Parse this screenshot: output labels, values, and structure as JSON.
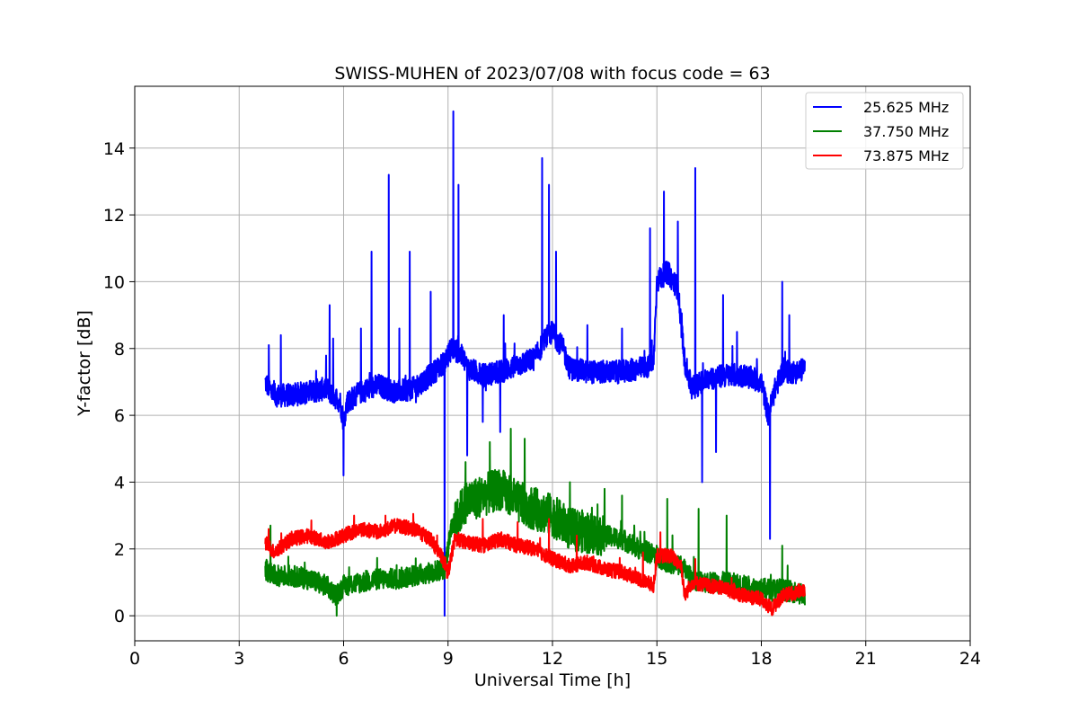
{
  "chart_data": {
    "type": "line",
    "title": "SWISS-MUHEN of 2023/07/08 with focus code = 63",
    "xlabel": "Universal Time [h]",
    "ylabel": "Y-factor [dB]",
    "xlim": [
      0,
      24
    ],
    "ylim": [
      -0.75,
      15.85
    ],
    "x_ticks": [
      0,
      3,
      6,
      9,
      12,
      15,
      18,
      21,
      24
    ],
    "x_tick_labels": [
      "0",
      "3",
      "6",
      "9",
      "12",
      "15",
      "18",
      "21",
      "24"
    ],
    "y_ticks": [
      0,
      2,
      4,
      6,
      8,
      10,
      12,
      14
    ],
    "y_tick_labels": [
      "0",
      "2",
      "4",
      "6",
      "8",
      "10",
      "12",
      "14"
    ],
    "grid": true,
    "legend_position": "top-right",
    "series": [
      {
        "name": "25.625 MHz",
        "color": "#0000ff",
        "x": [
          3.75,
          4.0,
          4.5,
          5.0,
          5.5,
          5.9,
          6.0,
          6.1,
          6.5,
          7.0,
          7.5,
          8.0,
          8.5,
          8.9,
          9.0,
          9.1,
          9.3,
          9.5,
          9.6,
          10.0,
          10.5,
          11.0,
          11.5,
          11.8,
          12.0,
          12.3,
          12.5,
          13.0,
          13.5,
          14.0,
          14.5,
          14.9,
          15.0,
          15.3,
          15.6,
          15.8,
          16.0,
          16.3,
          16.5,
          17.0,
          17.5,
          18.0,
          18.2,
          18.4,
          18.6,
          18.8,
          19.0,
          19.25
        ],
        "values": [
          7.0,
          6.6,
          6.6,
          6.7,
          6.8,
          6.4,
          5.8,
          6.4,
          6.7,
          6.9,
          6.7,
          6.8,
          7.2,
          7.6,
          7.8,
          8.0,
          7.9,
          7.6,
          7.4,
          7.2,
          7.3,
          7.5,
          7.7,
          8.3,
          8.5,
          8.0,
          7.4,
          7.3,
          7.3,
          7.3,
          7.4,
          7.5,
          10.0,
          10.3,
          9.8,
          7.6,
          6.8,
          7.0,
          7.1,
          7.2,
          7.2,
          7.0,
          6.0,
          6.8,
          7.3,
          7.3,
          7.3,
          7.4
        ],
        "spikes": [
          [
            3.85,
            8.1
          ],
          [
            4.2,
            8.4
          ],
          [
            5.6,
            9.3
          ],
          [
            5.7,
            8.3
          ],
          [
            6.0,
            4.2
          ],
          [
            6.5,
            8.6
          ],
          [
            6.8,
            10.9
          ],
          [
            7.3,
            13.2
          ],
          [
            7.6,
            8.6
          ],
          [
            7.9,
            10.9
          ],
          [
            8.5,
            9.7
          ],
          [
            8.9,
            0.0
          ],
          [
            9.15,
            15.1
          ],
          [
            9.3,
            12.9
          ],
          [
            9.55,
            4.8
          ],
          [
            10.0,
            5.8
          ],
          [
            10.5,
            5.5
          ],
          [
            10.6,
            9.0
          ],
          [
            11.7,
            13.7
          ],
          [
            11.9,
            12.9
          ],
          [
            12.1,
            10.9
          ],
          [
            13.0,
            8.7
          ],
          [
            14.0,
            8.6
          ],
          [
            14.8,
            11.6
          ],
          [
            15.2,
            12.7
          ],
          [
            15.6,
            11.8
          ],
          [
            16.1,
            13.4
          ],
          [
            16.3,
            4.0
          ],
          [
            16.7,
            4.9
          ],
          [
            16.9,
            9.6
          ],
          [
            17.3,
            8.5
          ],
          [
            18.25,
            2.3
          ],
          [
            18.6,
            10.0
          ],
          [
            18.8,
            9.0
          ]
        ]
      },
      {
        "name": "37.750 MHz",
        "color": "#008000",
        "x": [
          3.75,
          4.0,
          4.5,
          5.0,
          5.5,
          5.8,
          6.0,
          6.5,
          7.0,
          7.5,
          8.0,
          8.5,
          8.9,
          9.1,
          9.5,
          10.0,
          10.5,
          11.0,
          11.5,
          12.0,
          12.5,
          13.0,
          13.5,
          14.0,
          14.5,
          15.0,
          15.3,
          15.7,
          16.0,
          16.5,
          17.0,
          17.5,
          18.0,
          18.5,
          19.0,
          19.25
        ],
        "values": [
          1.4,
          1.2,
          1.2,
          1.1,
          0.9,
          0.6,
          0.9,
          1.0,
          1.1,
          1.1,
          1.2,
          1.3,
          1.4,
          2.6,
          3.4,
          3.6,
          3.8,
          3.4,
          3.2,
          3.0,
          2.6,
          2.5,
          2.4,
          2.3,
          2.0,
          1.8,
          1.6,
          1.5,
          1.1,
          1.0,
          1.0,
          0.9,
          0.8,
          0.8,
          0.7,
          0.6
        ],
        "spikes": [
          [
            3.9,
            2.7
          ],
          [
            5.8,
            0.0
          ],
          [
            9.5,
            4.6
          ],
          [
            10.2,
            5.2
          ],
          [
            10.8,
            5.6
          ],
          [
            11.2,
            5.3
          ],
          [
            12.5,
            4.0
          ],
          [
            13.5,
            3.8
          ],
          [
            14.0,
            3.6
          ],
          [
            15.3,
            3.5
          ],
          [
            16.2,
            3.2
          ],
          [
            17.0,
            3.0
          ],
          [
            18.6,
            2.1
          ]
        ]
      },
      {
        "name": "73.875 MHz",
        "color": "#ff0000",
        "x": [
          3.75,
          4.0,
          4.5,
          5.0,
          5.5,
          6.0,
          6.5,
          7.0,
          7.5,
          8.0,
          8.5,
          8.9,
          9.0,
          9.2,
          9.5,
          10.0,
          10.5,
          11.0,
          11.5,
          12.0,
          12.5,
          13.0,
          13.5,
          14.0,
          14.5,
          14.9,
          15.0,
          15.4,
          15.7,
          15.8,
          16.0,
          16.5,
          17.0,
          17.5,
          18.0,
          18.3,
          18.6,
          19.0,
          19.25
        ],
        "values": [
          2.2,
          1.9,
          2.3,
          2.4,
          2.2,
          2.4,
          2.6,
          2.5,
          2.7,
          2.6,
          2.3,
          1.6,
          1.3,
          2.3,
          2.2,
          2.1,
          2.3,
          2.1,
          2.0,
          1.7,
          1.5,
          1.6,
          1.4,
          1.3,
          1.1,
          0.9,
          1.8,
          1.8,
          1.5,
          0.6,
          1.0,
          0.9,
          0.8,
          0.6,
          0.5,
          0.2,
          0.6,
          0.7,
          0.8
        ],
        "spikes": [
          [
            6.3,
            3.0
          ],
          [
            7.2,
            3.0
          ],
          [
            8.0,
            3.05
          ],
          [
            9.0,
            1.2
          ],
          [
            10.0,
            2.9
          ],
          [
            11.0,
            2.8
          ],
          [
            11.9,
            2.9
          ],
          [
            12.7,
            2.4
          ],
          [
            14.6,
            1.9
          ],
          [
            15.1,
            2.5
          ],
          [
            16.1,
            1.7
          ],
          [
            18.3,
            0.05
          ]
        ]
      }
    ]
  }
}
